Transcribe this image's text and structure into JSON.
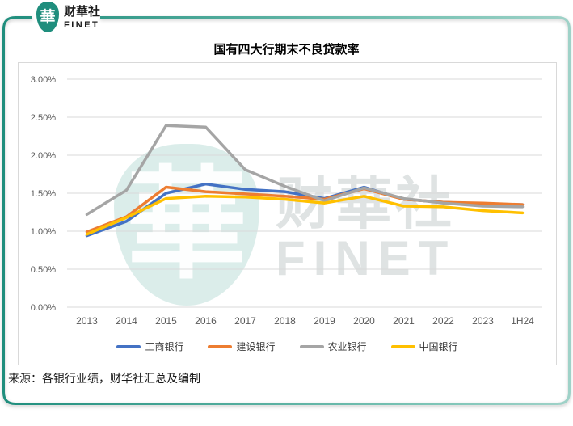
{
  "brand": {
    "logo_char": "華",
    "name_cn": "财華社",
    "name_en": "FINET"
  },
  "watermark": {
    "logo_char": "華",
    "text_cn": "财華社",
    "text_en": "FINET"
  },
  "chart_data": {
    "type": "line",
    "title": "国有四大行期末不良贷款率",
    "categories": [
      "2013",
      "2014",
      "2015",
      "2016",
      "2017",
      "2018",
      "2019",
      "2020",
      "2021",
      "2022",
      "2023",
      "1H24"
    ],
    "series": [
      {
        "name": "工商银行",
        "color": "#4472C4",
        "values": [
          0.94,
          1.13,
          1.5,
          1.62,
          1.55,
          1.52,
          1.43,
          1.58,
          1.42,
          1.38,
          1.36,
          1.35
        ]
      },
      {
        "name": "建设银行",
        "color": "#ED7D31",
        "values": [
          0.99,
          1.19,
          1.58,
          1.52,
          1.49,
          1.46,
          1.42,
          1.56,
          1.42,
          1.38,
          1.37,
          1.35
        ]
      },
      {
        "name": "农业银行",
        "color": "#A5A5A5",
        "values": [
          1.22,
          1.54,
          2.39,
          2.37,
          1.81,
          1.59,
          1.4,
          1.57,
          1.43,
          1.37,
          1.33,
          1.32
        ]
      },
      {
        "name": "中国银行",
        "color": "#FFC000",
        "values": [
          0.96,
          1.18,
          1.43,
          1.46,
          1.45,
          1.42,
          1.37,
          1.46,
          1.33,
          1.32,
          1.27,
          1.24
        ]
      }
    ],
    "y_ticks": [
      "3.00%",
      "2.50%",
      "2.00%",
      "1.50%",
      "1.00%",
      "0.50%",
      "0.00%"
    ],
    "ylim": [
      0,
      3
    ],
    "y_step": 0.5,
    "xlabel": "",
    "ylabel": "",
    "grid": true,
    "legend_position": "bottom"
  },
  "source_note": "来源：各银行业绩，财华社汇总及编制",
  "colors": {
    "brand_teal": "#1F8E7D",
    "frame_teal_light": "#9FD2C8",
    "grid": "#D9D9D9",
    "axis_text": "#595959"
  }
}
